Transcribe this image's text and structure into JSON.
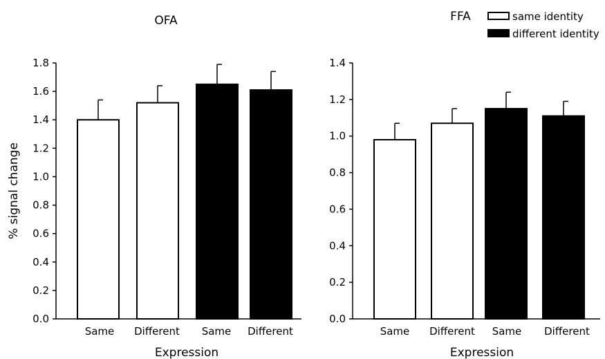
{
  "chart_data": [
    {
      "type": "bar",
      "title": "OFA",
      "xlabel": "Expression",
      "ylabel": "% signal change",
      "ylim": [
        0,
        1.8
      ],
      "yticks": [
        0,
        0.2,
        0.4,
        0.6,
        0.8,
        1.0,
        1.2,
        1.4,
        1.6,
        1.8
      ],
      "yticklabels": [
        "0.0",
        "0.2",
        "0.4",
        "0.6",
        "0.8",
        "1.0",
        "1.2",
        "1.4",
        "1.6",
        "1.8"
      ],
      "grid": false,
      "bars": [
        {
          "category": "Same",
          "group": "same identity",
          "value": 1.4,
          "error": 0.14
        },
        {
          "category": "Different",
          "group": "same identity",
          "value": 1.52,
          "error": 0.12
        },
        {
          "category": "Same",
          "group": "different identity",
          "value": 1.65,
          "error": 0.14
        },
        {
          "category": "Different",
          "group": "different identity",
          "value": 1.61,
          "error": 0.13
        }
      ]
    },
    {
      "type": "bar",
      "title": "FFA",
      "xlabel": "Expression",
      "ylabel": "",
      "ylim": [
        0,
        1.4
      ],
      "yticks": [
        0,
        0.2,
        0.4,
        0.6,
        0.8,
        1.0,
        1.2,
        1.4
      ],
      "yticklabels": [
        "0.0",
        "0.2",
        "0.4",
        "0.6",
        "0.8",
        "1.0",
        "1.2",
        "1.4"
      ],
      "grid": false,
      "legend": {
        "placement": "top-right",
        "entries": [
          {
            "label": "same identity",
            "fill": "#ffffff",
            "stroke": "#000000"
          },
          {
            "label": "different identity",
            "fill": "#000000",
            "stroke": "#000000"
          }
        ]
      },
      "bars": [
        {
          "category": "Same",
          "group": "same identity",
          "value": 0.98,
          "error": 0.09
        },
        {
          "category": "Different",
          "group": "same identity",
          "value": 1.07,
          "error": 0.08
        },
        {
          "category": "Same",
          "group": "different identity",
          "value": 1.15,
          "error": 0.09
        },
        {
          "category": "Different",
          "group": "different identity",
          "value": 1.11,
          "error": 0.08
        }
      ]
    }
  ],
  "colors": {
    "same identity": "#ffffff",
    "different identity": "#000000",
    "axis": "#000000"
  }
}
